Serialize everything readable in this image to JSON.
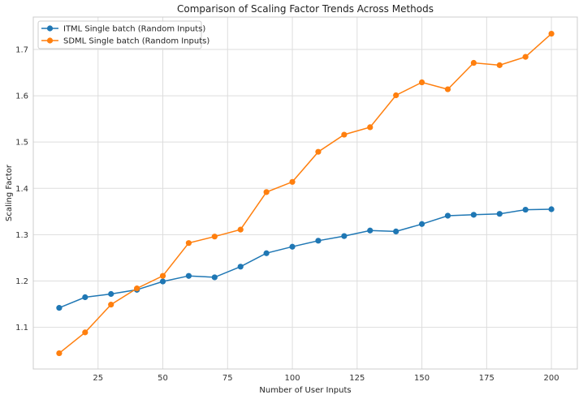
{
  "chart_data": {
    "type": "line",
    "title": "Comparison of Scaling Factor Trends Across Methods",
    "xlabel": "Number of User Inputs",
    "ylabel": "Scaling Factor",
    "xlim": [
      0,
      210
    ],
    "ylim": [
      1.01,
      1.77
    ],
    "xticks": [
      25,
      50,
      75,
      100,
      125,
      150,
      175,
      200
    ],
    "yticks": [
      1.1,
      1.2,
      1.3,
      1.4,
      1.5,
      1.6,
      1.7
    ],
    "grid": true,
    "legend_position": "top-left",
    "x": [
      10,
      20,
      30,
      40,
      50,
      60,
      70,
      80,
      90,
      100,
      110,
      120,
      130,
      140,
      150,
      160,
      170,
      180,
      190,
      200
    ],
    "series": [
      {
        "name": "ITML Single batch (Random Inputs)",
        "color": "#1f77b4",
        "values": [
          1.142,
          1.165,
          1.172,
          1.181,
          1.199,
          1.211,
          1.208,
          1.231,
          1.26,
          1.274,
          1.287,
          1.297,
          1.309,
          1.307,
          1.323,
          1.341,
          1.343,
          1.345,
          1.354,
          1.355
        ]
      },
      {
        "name": "SDML Single batch (Random Inputs)",
        "color": "#ff7f0e",
        "values": [
          1.044,
          1.089,
          1.149,
          1.184,
          1.211,
          1.282,
          1.296,
          1.311,
          1.392,
          1.414,
          1.479,
          1.516,
          1.532,
          1.601,
          1.629,
          1.614,
          1.671,
          1.666,
          1.684,
          1.734
        ]
      }
    ]
  }
}
